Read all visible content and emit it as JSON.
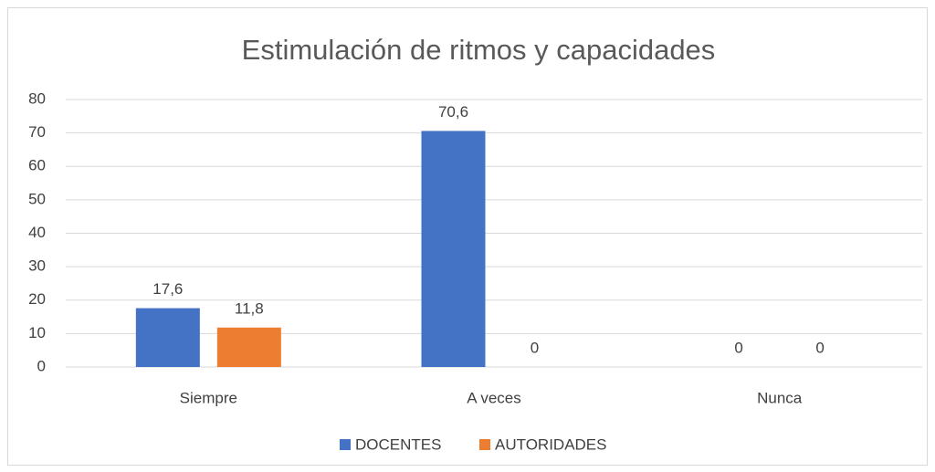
{
  "chart_data": {
    "type": "bar",
    "title": "Estimulación de ritmos y capacidades",
    "categories": [
      "Siempre",
      "A veces",
      "Nunca"
    ],
    "series": [
      {
        "name": "DOCENTES",
        "color": "#4472c4",
        "values": [
          17.6,
          70.6,
          0
        ],
        "value_labels": [
          "17,6",
          "70,6",
          "0"
        ]
      },
      {
        "name": "AUTORIDADES",
        "color": "#ed7d31",
        "values": [
          11.8,
          0,
          0
        ],
        "value_labels": [
          "11,8",
          "0",
          "0"
        ]
      }
    ],
    "ylim": [
      0,
      80
    ],
    "yticks": [
      0,
      10,
      20,
      30,
      40,
      50,
      60,
      70,
      80
    ],
    "grid": true,
    "legend": "bottom"
  }
}
